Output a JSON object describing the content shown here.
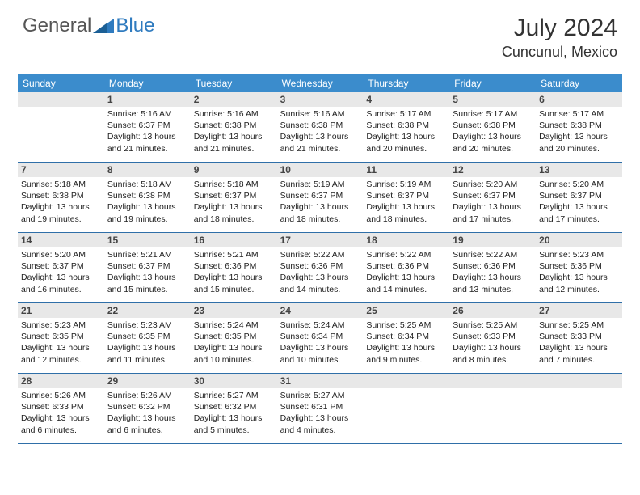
{
  "logo": {
    "part1": "General",
    "part2": "Blue"
  },
  "title": "July 2024",
  "location": "Cuncunul, Mexico",
  "colors": {
    "header_bg": "#3b8ccc",
    "header_text": "#ffffff",
    "datenum_bg": "#e8e8e8",
    "row_border": "#2f6fa8",
    "body_text": "#222222",
    "logo_blue": "#2f7bbf",
    "logo_gray": "#555555"
  },
  "day_names": [
    "Sunday",
    "Monday",
    "Tuesday",
    "Wednesday",
    "Thursday",
    "Friday",
    "Saturday"
  ],
  "weeks": [
    [
      null,
      {
        "d": "1",
        "sr": "Sunrise: 5:16 AM",
        "ss": "Sunset: 6:37 PM",
        "dl1": "Daylight: 13 hours",
        "dl2": "and 21 minutes."
      },
      {
        "d": "2",
        "sr": "Sunrise: 5:16 AM",
        "ss": "Sunset: 6:38 PM",
        "dl1": "Daylight: 13 hours",
        "dl2": "and 21 minutes."
      },
      {
        "d": "3",
        "sr": "Sunrise: 5:16 AM",
        "ss": "Sunset: 6:38 PM",
        "dl1": "Daylight: 13 hours",
        "dl2": "and 21 minutes."
      },
      {
        "d": "4",
        "sr": "Sunrise: 5:17 AM",
        "ss": "Sunset: 6:38 PM",
        "dl1": "Daylight: 13 hours",
        "dl2": "and 20 minutes."
      },
      {
        "d": "5",
        "sr": "Sunrise: 5:17 AM",
        "ss": "Sunset: 6:38 PM",
        "dl1": "Daylight: 13 hours",
        "dl2": "and 20 minutes."
      },
      {
        "d": "6",
        "sr": "Sunrise: 5:17 AM",
        "ss": "Sunset: 6:38 PM",
        "dl1": "Daylight: 13 hours",
        "dl2": "and 20 minutes."
      }
    ],
    [
      {
        "d": "7",
        "sr": "Sunrise: 5:18 AM",
        "ss": "Sunset: 6:38 PM",
        "dl1": "Daylight: 13 hours",
        "dl2": "and 19 minutes."
      },
      {
        "d": "8",
        "sr": "Sunrise: 5:18 AM",
        "ss": "Sunset: 6:38 PM",
        "dl1": "Daylight: 13 hours",
        "dl2": "and 19 minutes."
      },
      {
        "d": "9",
        "sr": "Sunrise: 5:18 AM",
        "ss": "Sunset: 6:37 PM",
        "dl1": "Daylight: 13 hours",
        "dl2": "and 18 minutes."
      },
      {
        "d": "10",
        "sr": "Sunrise: 5:19 AM",
        "ss": "Sunset: 6:37 PM",
        "dl1": "Daylight: 13 hours",
        "dl2": "and 18 minutes."
      },
      {
        "d": "11",
        "sr": "Sunrise: 5:19 AM",
        "ss": "Sunset: 6:37 PM",
        "dl1": "Daylight: 13 hours",
        "dl2": "and 18 minutes."
      },
      {
        "d": "12",
        "sr": "Sunrise: 5:20 AM",
        "ss": "Sunset: 6:37 PM",
        "dl1": "Daylight: 13 hours",
        "dl2": "and 17 minutes."
      },
      {
        "d": "13",
        "sr": "Sunrise: 5:20 AM",
        "ss": "Sunset: 6:37 PM",
        "dl1": "Daylight: 13 hours",
        "dl2": "and 17 minutes."
      }
    ],
    [
      {
        "d": "14",
        "sr": "Sunrise: 5:20 AM",
        "ss": "Sunset: 6:37 PM",
        "dl1": "Daylight: 13 hours",
        "dl2": "and 16 minutes."
      },
      {
        "d": "15",
        "sr": "Sunrise: 5:21 AM",
        "ss": "Sunset: 6:37 PM",
        "dl1": "Daylight: 13 hours",
        "dl2": "and 15 minutes."
      },
      {
        "d": "16",
        "sr": "Sunrise: 5:21 AM",
        "ss": "Sunset: 6:36 PM",
        "dl1": "Daylight: 13 hours",
        "dl2": "and 15 minutes."
      },
      {
        "d": "17",
        "sr": "Sunrise: 5:22 AM",
        "ss": "Sunset: 6:36 PM",
        "dl1": "Daylight: 13 hours",
        "dl2": "and 14 minutes."
      },
      {
        "d": "18",
        "sr": "Sunrise: 5:22 AM",
        "ss": "Sunset: 6:36 PM",
        "dl1": "Daylight: 13 hours",
        "dl2": "and 14 minutes."
      },
      {
        "d": "19",
        "sr": "Sunrise: 5:22 AM",
        "ss": "Sunset: 6:36 PM",
        "dl1": "Daylight: 13 hours",
        "dl2": "and 13 minutes."
      },
      {
        "d": "20",
        "sr": "Sunrise: 5:23 AM",
        "ss": "Sunset: 6:36 PM",
        "dl1": "Daylight: 13 hours",
        "dl2": "and 12 minutes."
      }
    ],
    [
      {
        "d": "21",
        "sr": "Sunrise: 5:23 AM",
        "ss": "Sunset: 6:35 PM",
        "dl1": "Daylight: 13 hours",
        "dl2": "and 12 minutes."
      },
      {
        "d": "22",
        "sr": "Sunrise: 5:23 AM",
        "ss": "Sunset: 6:35 PM",
        "dl1": "Daylight: 13 hours",
        "dl2": "and 11 minutes."
      },
      {
        "d": "23",
        "sr": "Sunrise: 5:24 AM",
        "ss": "Sunset: 6:35 PM",
        "dl1": "Daylight: 13 hours",
        "dl2": "and 10 minutes."
      },
      {
        "d": "24",
        "sr": "Sunrise: 5:24 AM",
        "ss": "Sunset: 6:34 PM",
        "dl1": "Daylight: 13 hours",
        "dl2": "and 10 minutes."
      },
      {
        "d": "25",
        "sr": "Sunrise: 5:25 AM",
        "ss": "Sunset: 6:34 PM",
        "dl1": "Daylight: 13 hours",
        "dl2": "and 9 minutes."
      },
      {
        "d": "26",
        "sr": "Sunrise: 5:25 AM",
        "ss": "Sunset: 6:33 PM",
        "dl1": "Daylight: 13 hours",
        "dl2": "and 8 minutes."
      },
      {
        "d": "27",
        "sr": "Sunrise: 5:25 AM",
        "ss": "Sunset: 6:33 PM",
        "dl1": "Daylight: 13 hours",
        "dl2": "and 7 minutes."
      }
    ],
    [
      {
        "d": "28",
        "sr": "Sunrise: 5:26 AM",
        "ss": "Sunset: 6:33 PM",
        "dl1": "Daylight: 13 hours",
        "dl2": "and 6 minutes."
      },
      {
        "d": "29",
        "sr": "Sunrise: 5:26 AM",
        "ss": "Sunset: 6:32 PM",
        "dl1": "Daylight: 13 hours",
        "dl2": "and 6 minutes."
      },
      {
        "d": "30",
        "sr": "Sunrise: 5:27 AM",
        "ss": "Sunset: 6:32 PM",
        "dl1": "Daylight: 13 hours",
        "dl2": "and 5 minutes."
      },
      {
        "d": "31",
        "sr": "Sunrise: 5:27 AM",
        "ss": "Sunset: 6:31 PM",
        "dl1": "Daylight: 13 hours",
        "dl2": "and 4 minutes."
      },
      null,
      null,
      null
    ]
  ]
}
